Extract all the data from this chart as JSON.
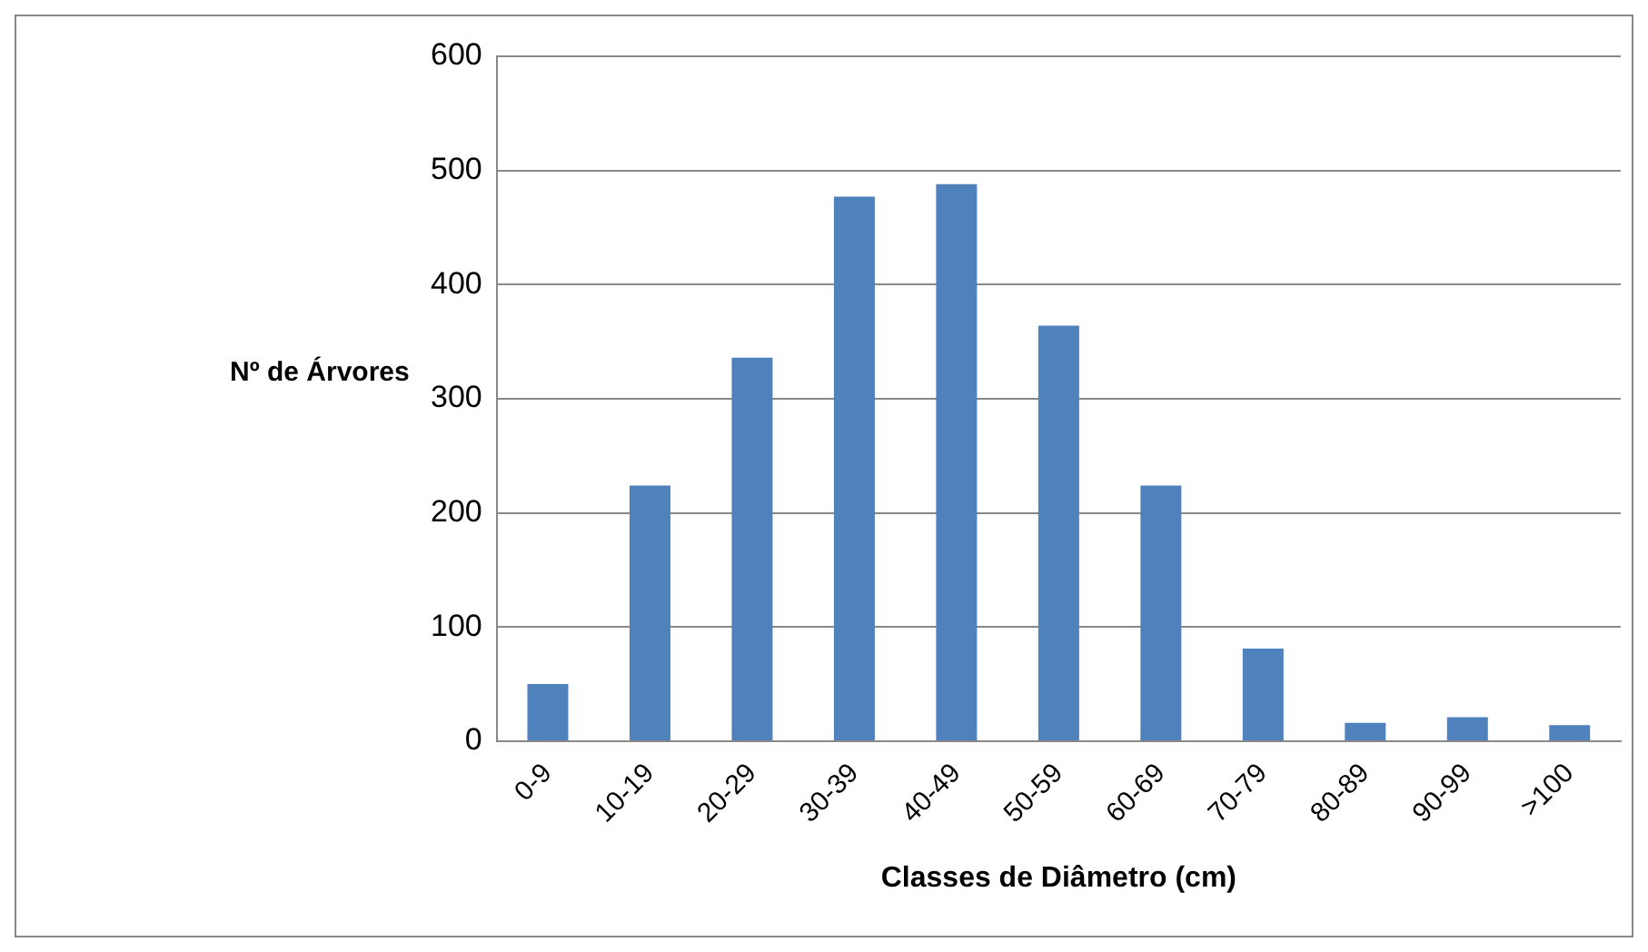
{
  "chart_data": {
    "type": "bar",
    "xlabel": "Classes de Diâmetro (cm)",
    "ylabel": "Nº de Árvores",
    "categories": [
      "0-9",
      "10-19",
      "20-29",
      "30-39",
      "40-49",
      "50-59",
      "60-69",
      "70-79",
      "80-89",
      "90-99",
      ">100"
    ],
    "values": [
      50,
      224,
      336,
      477,
      488,
      364,
      224,
      81,
      16,
      21,
      14
    ],
    "color": "#4f81bd",
    "ylim": [
      0,
      600
    ],
    "yticks": [
      0,
      100,
      200,
      300,
      400,
      500,
      600
    ],
    "grid": "y",
    "legend": false
  }
}
